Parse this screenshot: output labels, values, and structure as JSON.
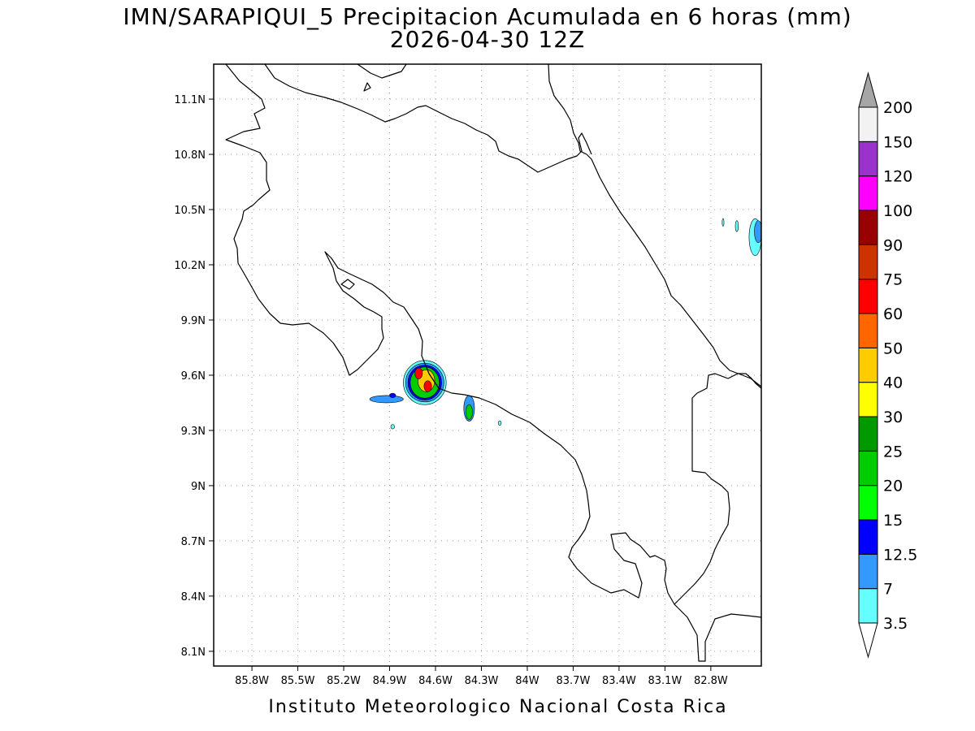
{
  "figure": {
    "title_line1": "IMN/SARAPIQUI_5 Precipitacion Acumulada en 6 horas (mm)",
    "title_line2": "2026-04-30 12Z",
    "footer": "Instituto Meteorologico Nacional Costa Rica"
  },
  "map": {
    "lon_range": [
      -86.05,
      -82.47
    ],
    "lat_range": [
      8.02,
      11.29
    ],
    "lon_ticks": [
      "85.8W",
      "85.5W",
      "85.2W",
      "84.9W",
      "84.6W",
      "84.3W",
      "84W",
      "83.7W",
      "83.4W",
      "83.1W",
      "82.8W"
    ],
    "lon_values": [
      -85.8,
      -85.5,
      -85.2,
      -84.9,
      -84.6,
      -84.3,
      -84.0,
      -83.7,
      -83.4,
      -83.1,
      -82.8
    ],
    "lat_ticks": [
      "11.1N",
      "10.8N",
      "10.5N",
      "10.2N",
      "9.9N",
      "9.6N",
      "9.3N",
      "9N",
      "8.7N",
      "8.4N",
      "8.1N"
    ],
    "lat_values": [
      11.1,
      10.8,
      10.5,
      10.2,
      9.9,
      9.6,
      9.3,
      9.0,
      8.7,
      8.4,
      8.1
    ],
    "grid": true,
    "precip_cells": [
      {
        "name": "main-cell-outer",
        "lon": -84.67,
        "lat": 9.56,
        "rlon": 0.14,
        "rlat": 0.12,
        "level": "3.5"
      },
      {
        "name": "main-cell-light",
        "lon": -84.67,
        "lat": 9.56,
        "rlon": 0.125,
        "rlat": 0.105,
        "level": "7"
      },
      {
        "name": "main-cell-blue",
        "lon": -84.67,
        "lat": 9.56,
        "rlon": 0.11,
        "rlat": 0.095,
        "level": "12.5"
      },
      {
        "name": "main-cell-green",
        "lon": -84.67,
        "lat": 9.56,
        "rlon": 0.095,
        "rlat": 0.085,
        "level": "20"
      },
      {
        "name": "main-cell-yellow",
        "lon": -84.66,
        "lat": 9.57,
        "rlon": 0.055,
        "rlat": 0.06,
        "level": "40"
      },
      {
        "name": "main-cell-red-north",
        "lon": -84.71,
        "lat": 9.61,
        "rlon": 0.025,
        "rlat": 0.03,
        "level": "60"
      },
      {
        "name": "main-cell-red-south",
        "lon": -84.65,
        "lat": 9.54,
        "rlon": 0.025,
        "rlat": 0.03,
        "level": "60"
      },
      {
        "name": "west-streak-light",
        "lon": -84.92,
        "lat": 9.47,
        "rlon": 0.11,
        "rlat": 0.02,
        "level": "7"
      },
      {
        "name": "west-streak-blue",
        "lon": -84.88,
        "lat": 9.49,
        "rlon": 0.02,
        "rlat": 0.012,
        "level": "12.5"
      },
      {
        "name": "east-cell-outer",
        "lon": -84.38,
        "lat": 9.42,
        "rlon": 0.035,
        "rlat": 0.07,
        "level": "7"
      },
      {
        "name": "east-cell-green",
        "lon": -84.38,
        "lat": 9.4,
        "rlon": 0.022,
        "rlat": 0.04,
        "level": "20"
      },
      {
        "name": "speck-1",
        "lon": -84.88,
        "lat": 9.32,
        "rlon": 0.012,
        "rlat": 0.012,
        "level": "3.5"
      },
      {
        "name": "speck-2",
        "lon": -84.18,
        "lat": 9.34,
        "rlon": 0.01,
        "rlat": 0.012,
        "level": "3.5"
      },
      {
        "name": "ne-cell-light",
        "lon": -82.51,
        "lat": 10.35,
        "rlon": 0.04,
        "rlat": 0.1,
        "level": "3.5"
      },
      {
        "name": "ne-cell-blue",
        "lon": -82.49,
        "lat": 10.38,
        "rlon": 0.025,
        "rlat": 0.06,
        "level": "7"
      },
      {
        "name": "ne-speck-1",
        "lon": -82.63,
        "lat": 10.41,
        "rlon": 0.01,
        "rlat": 0.03,
        "level": "3.5"
      },
      {
        "name": "ne-speck-2",
        "lon": -82.72,
        "lat": 10.43,
        "rlon": 0.006,
        "rlat": 0.02,
        "level": "3.5"
      }
    ]
  },
  "colorbar": {
    "levels": [
      "3.5",
      "7",
      "12.5",
      "15",
      "20",
      "25",
      "30",
      "40",
      "50",
      "60",
      "75",
      "90",
      "100",
      "120",
      "150",
      "200"
    ],
    "colors": [
      "#66ffff",
      "#3399ff",
      "#0000ff",
      "#00ff00",
      "#00cc00",
      "#009900",
      "#ffff00",
      "#ffcc00",
      "#ff6600",
      "#ff0000",
      "#cc3300",
      "#990000",
      "#ff00ff",
      "#9933cc",
      "#f2f2f2"
    ],
    "over_color": "#a6a6a6",
    "under_color": "#ffffff"
  }
}
